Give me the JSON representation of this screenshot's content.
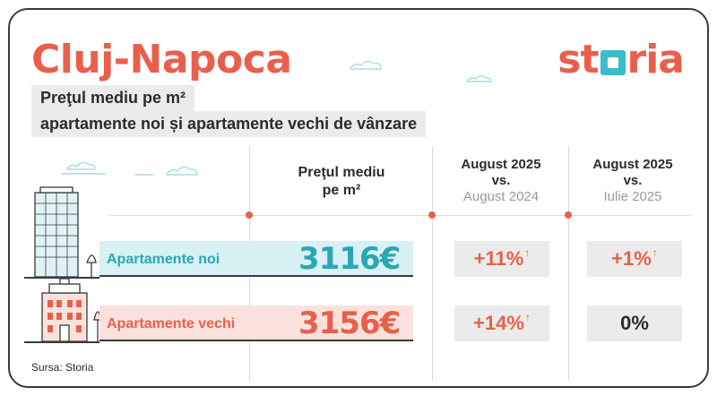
{
  "header": {
    "city": "Cluj-Napoca",
    "subtitle_line1": "Preţul mediu pe m²",
    "subtitle_line2": "apartamente noi și apartamente vechi de vânzare",
    "logo": {
      "part1": "st",
      "part2": "ria"
    }
  },
  "table": {
    "col_price": {
      "line1": "Preţul mediu",
      "line2": "pe m²"
    },
    "col_yoy": {
      "line1": "August 2025",
      "line2": "vs.",
      "line3": "August 2024"
    },
    "col_mom": {
      "line1": "August 2025",
      "line2": "vs.",
      "line3": "Iulie 2025"
    },
    "rows": [
      {
        "label": "Apartamente noi",
        "price": "3116€",
        "yoy": "+11%",
        "yoy_arrow": "↑",
        "mom": "+1%",
        "mom_arrow": "↑"
      },
      {
        "label": "Apartamente vechi",
        "price": "3156€",
        "yoy": "+14%",
        "yoy_arrow": "↑",
        "mom": "0%",
        "mom_arrow": ""
      }
    ]
  },
  "footer": {
    "source": "Sursa: Storia"
  },
  "colors": {
    "brand": "#e8604c",
    "teal": "#2aa7b5",
    "band_new": "#d8f1f4",
    "band_old": "#fbe1dc",
    "pill": "#ebebeb"
  }
}
